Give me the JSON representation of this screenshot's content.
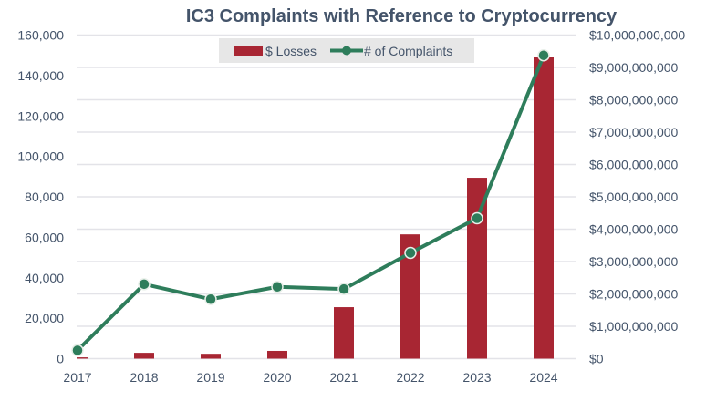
{
  "chart_data": {
    "type": "bar+line",
    "title": "IC3 Complaints with Reference to Cryptocurrency",
    "categories": [
      "2017",
      "2018",
      "2019",
      "2020",
      "2021",
      "2022",
      "2023",
      "2024"
    ],
    "series": [
      {
        "name": "$ Losses",
        "type": "bar",
        "axis": "right",
        "color": "#a82633",
        "values": [
          40000000,
          180000000,
          150000000,
          240000000,
          1590000000,
          3840000000,
          5590000000,
          9320000000
        ]
      },
      {
        "name": "# of Complaints",
        "type": "line",
        "axis": "left",
        "color": "#2e7d5b",
        "values": [
          4100,
          36800,
          29400,
          35500,
          34400,
          52300,
          69400,
          150000
        ]
      }
    ],
    "y_left": {
      "range": [
        0,
        160000
      ],
      "ticks": [
        "0",
        "20,000",
        "40,000",
        "60,000",
        "80,000",
        "100,000",
        "120,000",
        "140,000",
        "160,000"
      ]
    },
    "y_right": {
      "range": [
        0,
        10000000000
      ],
      "ticks": [
        "$0",
        "$1,000,000,000",
        "$2,000,000,000",
        "$3,000,000,000",
        "$4,000,000,000",
        "$5,000,000,000",
        "$6,000,000,000",
        "$7,000,000,000",
        "$8,000,000,000",
        "$9,000,000,000",
        "$10,000,000,000"
      ]
    },
    "grid": true,
    "legend_position": "top-center"
  }
}
